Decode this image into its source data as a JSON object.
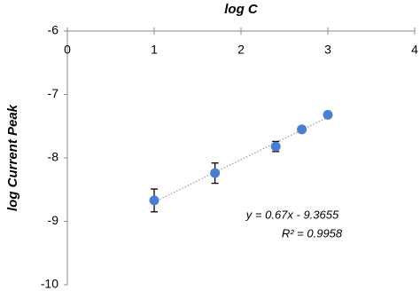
{
  "chart_data": {
    "type": "scatter",
    "x_label": "log C",
    "y_label": "log Current Peak",
    "x": [
      1,
      1.7,
      2.4,
      2.7,
      3
    ],
    "series": [
      {
        "values": [
          -8.67,
          -8.24,
          -7.82,
          -7.55,
          -7.32
        ],
        "error": [
          0.18,
          0.16,
          0.08,
          0.03,
          0.02
        ],
        "color": "#4a7fd0"
      }
    ],
    "xlim": [
      0,
      4
    ],
    "xticks": [
      0,
      1,
      2,
      3,
      4
    ],
    "ylim": [
      -10,
      -6
    ],
    "yticks": [
      -6,
      -7,
      -8,
      -9,
      -10
    ],
    "trendline": true,
    "annotations": [
      "y = 0.67x - 9.3655",
      "R² = 0.9958"
    ]
  }
}
